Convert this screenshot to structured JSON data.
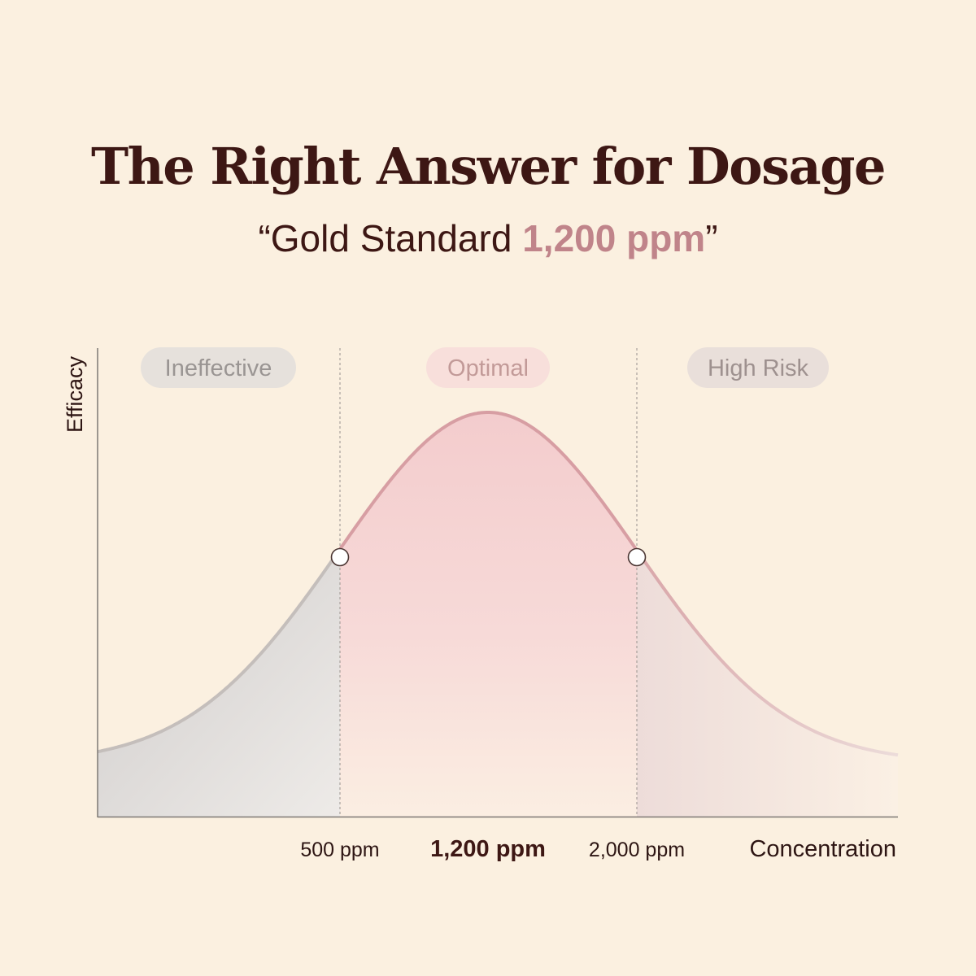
{
  "header": {
    "title": "The Right Answer for Dosage",
    "subtitle_open": "“Gold Standard ",
    "subtitle_highlight": "1,200 ppm",
    "subtitle_close": "”"
  },
  "chart_data": {
    "type": "area",
    "curve": "bell",
    "ylabel": "Efficacy",
    "xlabel": "Concentration",
    "y_ticks_shown": false,
    "grid": false,
    "peak_at": "1,200 ppm",
    "boundary_markers": [
      "500 ppm",
      "2,000 ppm"
    ],
    "zones": [
      {
        "name": "Ineffective",
        "range": "below 500 ppm",
        "color": "#d3d0ce",
        "text_color": "#9a9593"
      },
      {
        "name": "Optimal",
        "range": "500 ppm – 2,000 ppm",
        "color": "#f5d3d2",
        "text_color": "#c29a98"
      },
      {
        "name": "High Risk",
        "range": "above 2,000 ppm",
        "color": "#e8dcd8",
        "text_color": "#9e918f"
      }
    ],
    "x_ticks": [
      {
        "label": "500 ppm",
        "emphasis": false
      },
      {
        "label": "1,200 ppm",
        "emphasis": true
      },
      {
        "label": "2,000 ppm",
        "emphasis": false
      }
    ],
    "colors": {
      "curve_optimal": "#d79ea3",
      "curve_outer": "#c4bebb",
      "axis": "#7d7874",
      "ink": "#3d1714"
    }
  }
}
